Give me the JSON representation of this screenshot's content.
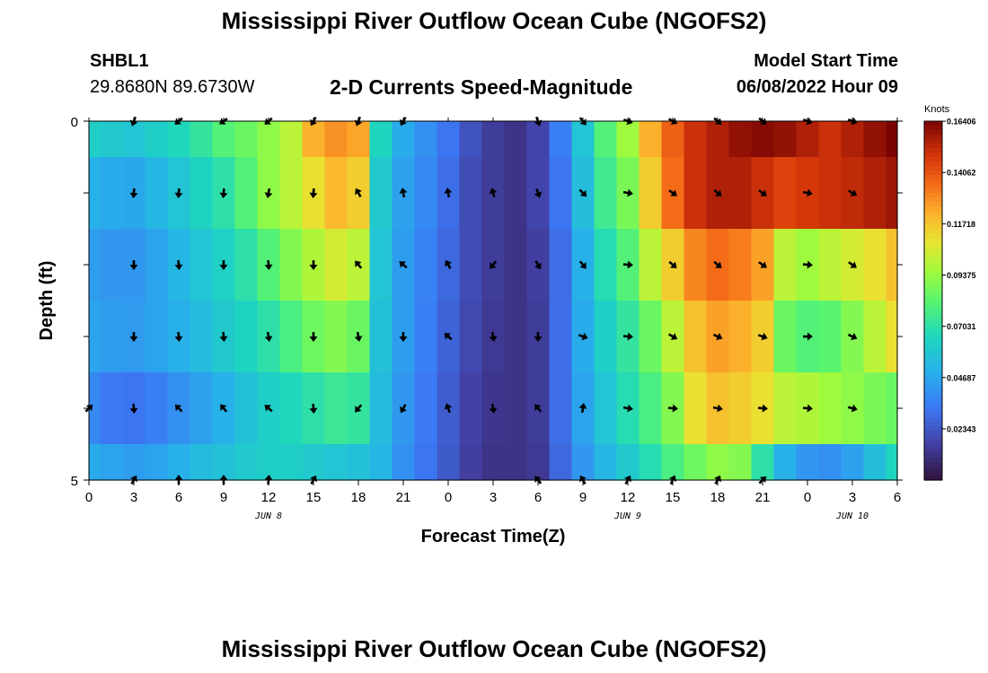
{
  "page": {
    "title": "Mississippi River Outflow Ocean Cube (NGOFS2)",
    "bottom_title": "Mississippi River Outflow Ocean Cube (NGOFS2)",
    "station": {
      "id": "SHBL1",
      "coords": "29.8680N  89.6730W"
    },
    "plot_title": "2-D Currents Speed-Magnitude",
    "model_start_label": "Model Start Time",
    "model_start_value": "06/08/2022 Hour 09"
  },
  "chart_data": {
    "type": "heatmap",
    "xlabel": "Forecast Time(Z)",
    "ylabel": "Depth (ft)",
    "x_ticks": [
      "0",
      "3",
      "6",
      "9",
      "12",
      "15",
      "18",
      "21",
      "0",
      "3",
      "6",
      "9",
      "12",
      "15",
      "18",
      "21",
      "0",
      "3",
      "6"
    ],
    "x_range_hours": [
      0,
      54
    ],
    "date_labels": [
      {
        "hour": 12,
        "text": "JUN 8"
      },
      {
        "hour": 36,
        "text": "JUN 9"
      },
      {
        "hour": 51,
        "text": "JUN 10"
      }
    ],
    "y_ticks": [
      "0",
      "5"
    ],
    "ylim": [
      0,
      5
    ],
    "colorbar": {
      "title": "Knots",
      "tick_labels": [
        "0.16406",
        "0.14062",
        "0.11718",
        "0.09375",
        "0.07031",
        "0.04687",
        "0.02343"
      ],
      "tick_values": [
        0.16406,
        0.14062,
        0.11718,
        0.09375,
        0.07031,
        0.04687,
        0.02343
      ],
      "range": [
        0.0,
        0.1641
      ]
    },
    "grid": false,
    "depth_levels": [
      0,
      1,
      2,
      3,
      4,
      5
    ],
    "times": [
      0,
      1.5,
      3,
      4.5,
      6,
      7.5,
      9,
      10.5,
      12,
      13.5,
      15,
      16.5,
      18,
      19.5,
      21,
      22.5,
      24,
      25.5,
      27,
      28.5,
      30,
      31.5,
      33,
      34.5,
      36,
      37.5,
      39,
      40.5,
      42,
      43.5,
      45,
      46.5,
      48,
      49.5,
      51,
      52.5,
      54
    ],
    "speed": [
      [
        0.062,
        0.06,
        0.058,
        0.062,
        0.066,
        0.072,
        0.08,
        0.085,
        0.092,
        0.1,
        0.122,
        0.128,
        0.124,
        0.065,
        0.048,
        0.04,
        0.032,
        0.022,
        0.015,
        0.012,
        0.018,
        0.035,
        0.058,
        0.08,
        0.095,
        0.122,
        0.138,
        0.15,
        0.155,
        0.16,
        0.162,
        0.16,
        0.155,
        0.15,
        0.155,
        0.16,
        0.164
      ],
      [
        0.05,
        0.048,
        0.047,
        0.052,
        0.058,
        0.064,
        0.07,
        0.08,
        0.092,
        0.1,
        0.11,
        0.12,
        0.115,
        0.06,
        0.045,
        0.038,
        0.03,
        0.02,
        0.015,
        0.012,
        0.018,
        0.032,
        0.055,
        0.075,
        0.088,
        0.115,
        0.135,
        0.15,
        0.155,
        0.155,
        0.15,
        0.145,
        0.148,
        0.15,
        0.152,
        0.155,
        0.158
      ],
      [
        0.044,
        0.042,
        0.042,
        0.046,
        0.052,
        0.058,
        0.063,
        0.07,
        0.08,
        0.09,
        0.098,
        0.105,
        0.1,
        0.058,
        0.044,
        0.036,
        0.028,
        0.02,
        0.015,
        0.012,
        0.016,
        0.03,
        0.05,
        0.068,
        0.08,
        0.1,
        0.115,
        0.13,
        0.135,
        0.132,
        0.125,
        0.1,
        0.095,
        0.1,
        0.105,
        0.11,
        0.118
      ],
      [
        0.046,
        0.044,
        0.043,
        0.046,
        0.05,
        0.054,
        0.06,
        0.064,
        0.07,
        0.078,
        0.086,
        0.09,
        0.085,
        0.056,
        0.044,
        0.035,
        0.027,
        0.019,
        0.014,
        0.012,
        0.015,
        0.03,
        0.048,
        0.062,
        0.072,
        0.085,
        0.1,
        0.118,
        0.125,
        0.122,
        0.115,
        0.085,
        0.08,
        0.082,
        0.09,
        0.1,
        0.11
      ],
      [
        0.038,
        0.033,
        0.032,
        0.035,
        0.04,
        0.045,
        0.05,
        0.056,
        0.062,
        0.066,
        0.07,
        0.074,
        0.072,
        0.054,
        0.042,
        0.033,
        0.025,
        0.017,
        0.013,
        0.012,
        0.015,
        0.03,
        0.046,
        0.058,
        0.068,
        0.078,
        0.09,
        0.11,
        0.118,
        0.115,
        0.11,
        0.1,
        0.098,
        0.095,
        0.092,
        0.088,
        0.085
      ],
      [
        0.048,
        0.046,
        0.044,
        0.046,
        0.05,
        0.054,
        0.056,
        0.06,
        0.062,
        0.062,
        0.06,
        0.058,
        0.056,
        0.052,
        0.04,
        0.032,
        0.024,
        0.016,
        0.012,
        0.012,
        0.014,
        0.028,
        0.042,
        0.052,
        0.06,
        0.068,
        0.078,
        0.086,
        0.092,
        0.09,
        0.07,
        0.05,
        0.042,
        0.04,
        0.045,
        0.055,
        0.065
      ]
    ],
    "vector_times": [
      0,
      3,
      6,
      9,
      12,
      15,
      18,
      21,
      24,
      27,
      30,
      33,
      36,
      39,
      42,
      45,
      48,
      51
    ],
    "vector_depths": [
      0,
      1,
      2,
      3,
      4,
      5
    ],
    "vector_direction_deg": [
      [
        null,
        200,
        230,
        235,
        230,
        210,
        200,
        210,
        null,
        null,
        160,
        140,
        110,
        120,
        130,
        130,
        110,
        110
      ],
      [
        null,
        185,
        185,
        185,
        190,
        185,
        330,
        350,
        350,
        345,
        160,
        135,
        100,
        125,
        130,
        125,
        100,
        120
      ],
      [
        null,
        180,
        175,
        180,
        175,
        180,
        320,
        310,
        330,
        220,
        150,
        140,
        95,
        130,
        130,
        125,
        95,
        125
      ],
      [
        null,
        180,
        175,
        175,
        170,
        180,
        170,
        180,
        310,
        170,
        180,
        110,
        95,
        120,
        115,
        110,
        90,
        115
      ],
      [
        45,
        175,
        315,
        320,
        310,
        175,
        220,
        210,
        340,
        170,
        320,
        10,
        100,
        95,
        100,
        95,
        95,
        105
      ],
      [
        null,
        30,
        0,
        0,
        5,
        30,
        null,
        null,
        null,
        null,
        320,
        330,
        30,
        25,
        30,
        45,
        null,
        null
      ]
    ]
  }
}
